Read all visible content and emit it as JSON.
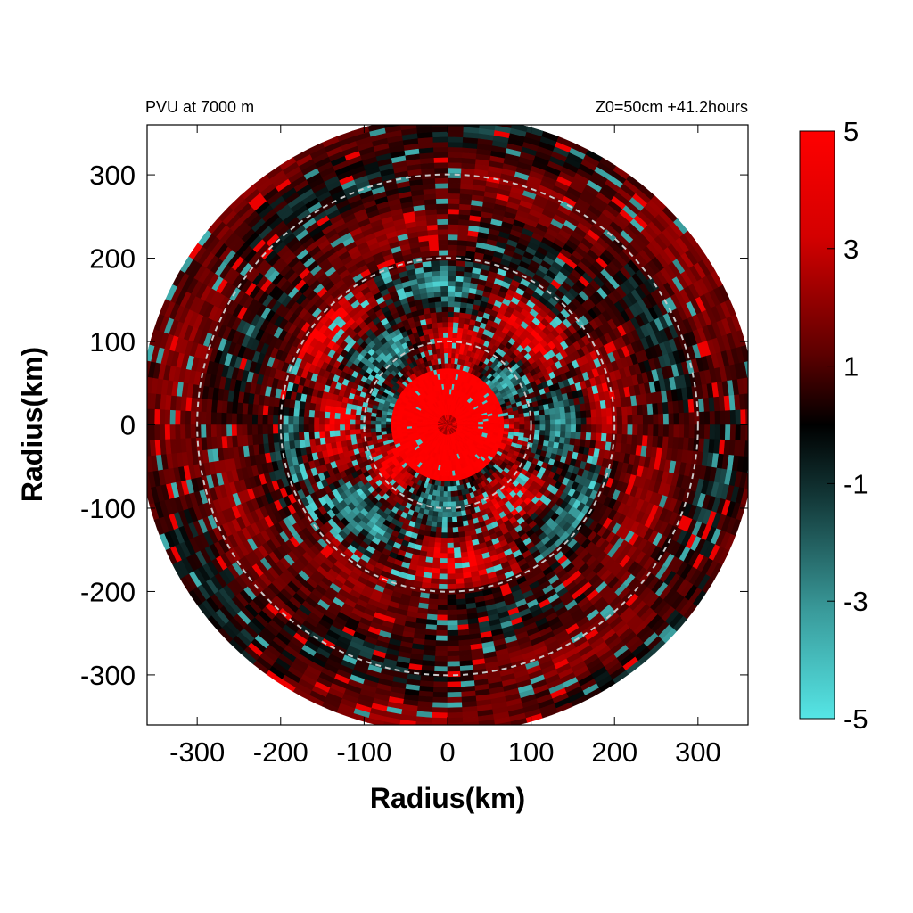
{
  "chart_data": {
    "type": "heatmap",
    "subtitle_left": "PVU at  7000 m",
    "subtitle_right": "Z0=50cm  +41.2hours",
    "xlabel": "Radius(km)",
    "ylabel": "Radius(km)",
    "xlim": [
      -360,
      360
    ],
    "ylim": [
      -360,
      360
    ],
    "x_ticks": [
      -300,
      -200,
      -100,
      0,
      100,
      200,
      300
    ],
    "y_ticks": [
      300,
      200,
      100,
      0,
      -100,
      -200,
      -300
    ],
    "x_tick_labels": [
      "-300",
      "-200",
      "-100",
      "0",
      "100",
      "200",
      "300"
    ],
    "y_tick_labels": [
      "300",
      "200",
      "100",
      "0",
      "-100",
      "-200",
      "-300"
    ],
    "reference_circle_radii_km": [
      100,
      200,
      300
    ],
    "data_radius_km": 370,
    "colorbar": {
      "range": [
        -5,
        5
      ],
      "ticks": [
        5,
        3,
        1,
        -1,
        -3,
        -5
      ],
      "tick_labels": [
        "5",
        "3",
        "1",
        "-1",
        "-3",
        "-5"
      ],
      "colors": {
        "max": "#ff0000",
        "mid": "#000000",
        "min": "#55e5e5"
      }
    },
    "grid": false,
    "legend": "colorbar-right"
  }
}
